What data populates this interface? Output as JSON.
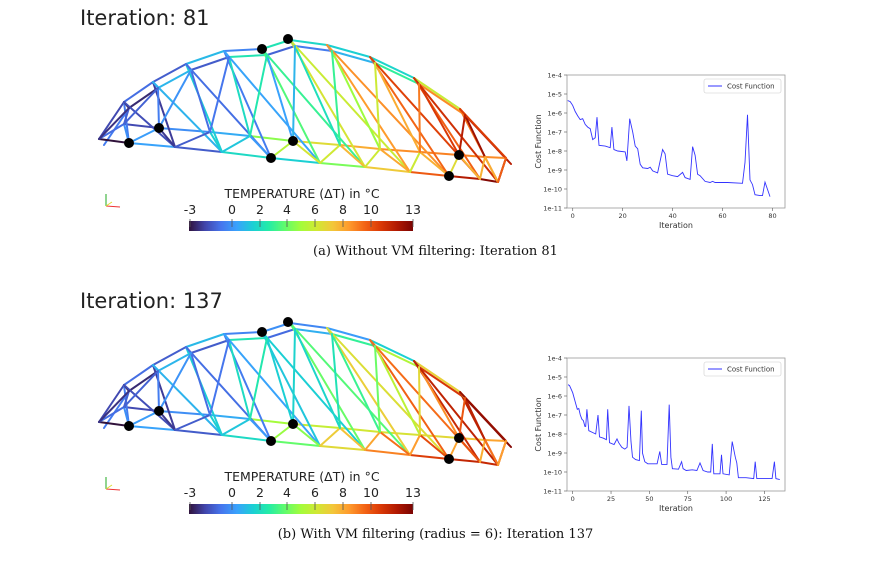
{
  "panels": [
    {
      "iteration_title": "Iteration: 81",
      "colorbar": {
        "title": "TEMPERATURE (ΔT) in °C",
        "ticks": [
          "-3",
          "0",
          "2",
          "4",
          "6",
          "8",
          "10",
          "13"
        ],
        "range": [
          -3,
          13
        ]
      },
      "caption": "(a) Without VM filtering: Iteration 81"
    },
    {
      "iteration_title": "Iteration: 137",
      "colorbar": {
        "title": "TEMPERATURE (ΔT) in °C",
        "ticks": [
          "-3",
          "0",
          "2",
          "4",
          "6",
          "8",
          "10",
          "13"
        ],
        "range": [
          -3,
          13
        ]
      },
      "caption": "(b) With VM filtering (radius = 6): Iteration 137"
    }
  ],
  "colormap": [
    "#30123b",
    "#4145ab",
    "#4675ed",
    "#39a2fc",
    "#1bcfd4",
    "#24eca6",
    "#61fc6c",
    "#a4fc3b",
    "#d1e834",
    "#f3c63a",
    "#fe9b2d",
    "#f36315",
    "#d93806",
    "#b11901",
    "#7a0403"
  ],
  "chart_data": [
    {
      "type": "line",
      "xlabel": "Iteration",
      "ylabel": "Cost Function",
      "yscale": "log",
      "xlim": [
        -2.3,
        85
      ],
      "ylim": [
        1e-11,
        0.0001
      ],
      "xticks": [
        "0",
        "20",
        "40",
        "60",
        "80"
      ],
      "yticks": [
        "1e-11",
        "1e-10",
        "1e-9",
        "1e-8",
        "1e-7",
        "1e-6",
        "1e-5",
        "1e-4"
      ],
      "legend": "top-right",
      "color": "#3333ff",
      "series": [
        {
          "name": "Cost Function",
          "points": [
            [
              -2,
              4.5e-06
            ],
            [
              -1,
              4e-06
            ],
            [
              0,
              2.5e-06
            ],
            [
              1,
              1.2e-06
            ],
            [
              2,
              7e-07
            ],
            [
              3,
              4.5e-07
            ],
            [
              4,
              5e-07
            ],
            [
              5,
              2.5e-07
            ],
            [
              6,
              1.8e-07
            ],
            [
              7,
              1.5e-07
            ],
            [
              8,
              4e-08
            ],
            [
              9,
              5e-08
            ],
            [
              9.7,
              6e-07
            ],
            [
              10.5,
              2e-08
            ],
            [
              13,
              1.8e-08
            ],
            [
              15,
              1.5e-08
            ],
            [
              15.7,
              1.8e-07
            ],
            [
              16.5,
              1.2e-08
            ],
            [
              18,
              1e-08
            ],
            [
              21,
              9e-09
            ],
            [
              21.7,
              3e-09
            ],
            [
              22.8,
              5e-07
            ],
            [
              24,
              1e-07
            ],
            [
              25,
              1.8e-08
            ],
            [
              26,
              1.3e-08
            ],
            [
              27,
              2e-09
            ],
            [
              28,
              1.3e-09
            ],
            [
              30,
              1.2e-09
            ],
            [
              31,
              1.4e-09
            ],
            [
              32,
              9e-10
            ],
            [
              34,
              7e-10
            ],
            [
              36,
              1.2e-08
            ],
            [
              37,
              7e-09
            ],
            [
              38,
              6e-10
            ],
            [
              40,
              5e-10
            ],
            [
              42,
              4.5e-10
            ],
            [
              44,
              7.5e-10
            ],
            [
              45,
              4e-10
            ],
            [
              47,
              3.2e-10
            ],
            [
              48,
              1.7e-08
            ],
            [
              49,
              6e-09
            ],
            [
              50,
              6e-10
            ],
            [
              51,
              5e-10
            ],
            [
              53,
              2.5e-10
            ],
            [
              55,
              2.2e-10
            ],
            [
              56,
              2.5e-10
            ],
            [
              57,
              2.2e-10
            ],
            [
              62,
              2.2e-10
            ],
            [
              68,
              2e-10
            ],
            [
              69,
              2.5e-09
            ],
            [
              70,
              8e-07
            ],
            [
              71,
              3e-10
            ],
            [
              72,
              1.7e-10
            ],
            [
              73,
              5e-11
            ],
            [
              75,
              4.5e-11
            ],
            [
              76,
              4.5e-11
            ],
            [
              77,
              2.3e-10
            ],
            [
              79,
              4e-11
            ]
          ]
        }
      ]
    },
    {
      "type": "line",
      "xlabel": "Iteration",
      "ylabel": "Cost Function",
      "yscale": "log",
      "xlim": [
        -3.7,
        138.4
      ],
      "ylim": [
        1e-11,
        0.0001
      ],
      "xticks": [
        "0",
        "25",
        "50",
        "75",
        "100",
        "125"
      ],
      "yticks": [
        "1e-11",
        "1e-10",
        "1e-9",
        "1e-8",
        "1e-7",
        "1e-6",
        "1e-5",
        "1e-4"
      ],
      "legend": "top-right",
      "color": "#3333ff",
      "series": [
        {
          "name": "Cost Function",
          "points": [
            [
              -3,
              4e-06
            ],
            [
              -2,
              3.5e-06
            ],
            [
              0,
              1.5e-06
            ],
            [
              2,
              4e-07
            ],
            [
              3,
              2e-07
            ],
            [
              4,
              2.2e-07
            ],
            [
              5,
              1e-07
            ],
            [
              6,
              6e-08
            ],
            [
              7,
              5e-08
            ],
            [
              8,
              2.5e-08
            ],
            [
              8.5,
              2.5e-08
            ],
            [
              9.3,
              2e-07
            ],
            [
              10.5,
              1.5e-08
            ],
            [
              13,
              1.2e-08
            ],
            [
              15,
              1e-08
            ],
            [
              16.5,
              1e-07
            ],
            [
              17.5,
              7e-09
            ],
            [
              20,
              6e-09
            ],
            [
              22,
              5e-09
            ],
            [
              22.8,
              2e-07
            ],
            [
              24,
              3.5e-09
            ],
            [
              27,
              2.8e-09
            ],
            [
              28.9,
              5.5e-09
            ],
            [
              30,
              3.5e-09
            ],
            [
              32,
              2e-09
            ],
            [
              34,
              1.6e-09
            ],
            [
              35.5,
              2e-09
            ],
            [
              36.7,
              3e-07
            ],
            [
              38,
              4e-09
            ],
            [
              39,
              6e-10
            ],
            [
              41,
              4.5e-10
            ],
            [
              43.5,
              4e-10
            ],
            [
              44.7,
              1.7e-07
            ],
            [
              45.5,
              1e-09
            ],
            [
              47,
              3.5e-10
            ],
            [
              49,
              2.7e-10
            ],
            [
              55,
              2.7e-10
            ],
            [
              56.8,
              1.2e-09
            ],
            [
              58,
              2.5e-10
            ],
            [
              61.5,
              2.5e-10
            ],
            [
              62.9,
              3.5e-07
            ],
            [
              64,
              6e-10
            ],
            [
              65,
              1.5e-10
            ],
            [
              69,
              1.4e-10
            ],
            [
              71,
              3.5e-10
            ],
            [
              72,
              1.5e-10
            ],
            [
              74,
              1.2e-10
            ],
            [
              78,
              1.3e-10
            ],
            [
              81,
              1.2e-10
            ],
            [
              83,
              3e-10
            ],
            [
              85,
              1.2e-10
            ],
            [
              88,
              1e-10
            ],
            [
              90,
              1e-10
            ],
            [
              91,
              3e-09
            ],
            [
              92,
              8e-11
            ],
            [
              96,
              8e-11
            ],
            [
              97,
              8e-10
            ],
            [
              98,
              8e-11
            ],
            [
              102,
              7e-11
            ],
            [
              104,
              4e-09
            ],
            [
              106,
              6e-10
            ],
            [
              107,
              3e-10
            ],
            [
              108,
              5e-11
            ],
            [
              113,
              5e-11
            ],
            [
              118,
              4.5e-11
            ],
            [
              119,
              3.5e-10
            ],
            [
              120,
              4.5e-11
            ],
            [
              130,
              4.5e-11
            ],
            [
              131.5,
              3.5e-10
            ],
            [
              132.5,
              4.5e-11
            ],
            [
              135,
              4e-11
            ]
          ]
        }
      ]
    }
  ]
}
